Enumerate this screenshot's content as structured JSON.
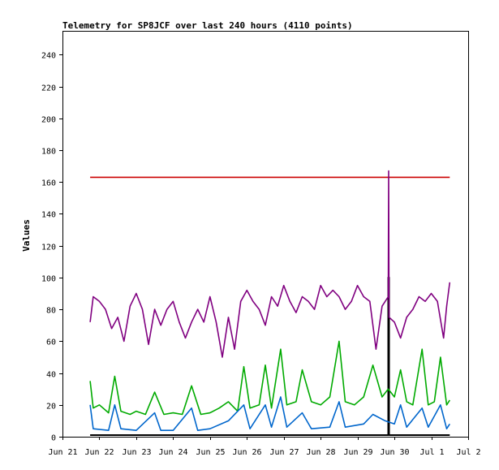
{
  "chart_data": {
    "type": "line",
    "title": "Telemetry for SP8JCF over last 240 hours (4110 points)",
    "xlabel": "",
    "ylabel": "Values",
    "xlim": [
      "2024-06-21T00:00",
      "2024-07-02T00:00"
    ],
    "ylim": [
      0,
      255
    ],
    "x_ticks": [
      {
        "x": "2024-06-21T00:00",
        "label": "Jun 21"
      },
      {
        "x": "2024-06-22T00:00",
        "label": "Jun 22"
      },
      {
        "x": "2024-06-23T00:00",
        "label": "Jun 23"
      },
      {
        "x": "2024-06-24T00:00",
        "label": "Jun 24"
      },
      {
        "x": "2024-06-25T00:00",
        "label": "Jun 25"
      },
      {
        "x": "2024-06-26T00:00",
        "label": "Jun 26"
      },
      {
        "x": "2024-06-27T00:00",
        "label": "Jun 27"
      },
      {
        "x": "2024-06-28T00:00",
        "label": "Jun 28"
      },
      {
        "x": "2024-06-29T00:00",
        "label": "Jun 29"
      },
      {
        "x": "2024-06-30T00:00",
        "label": "Jun 30"
      },
      {
        "x": "2024-07-01T00:00",
        "label": "Jul 1"
      },
      {
        "x": "2024-07-02T00:00",
        "label": "Jul 2"
      }
    ],
    "y_ticks": [
      0,
      20,
      40,
      60,
      80,
      100,
      120,
      140,
      160,
      180,
      200,
      220,
      240
    ],
    "grid": false,
    "legend": "none",
    "series": [
      {
        "color": "#cc0000",
        "points": [
          [
            "2024-06-21T18:00",
            163
          ],
          [
            "2024-07-01T12:00",
            163
          ]
        ]
      },
      {
        "color": "#000000",
        "points": [
          [
            "2024-06-21T18:00",
            1
          ],
          [
            "2024-06-29T20:00",
            1
          ],
          [
            "2024-06-29T20:00",
            100
          ],
          [
            "2024-06-29T20:30",
            100
          ],
          [
            "2024-06-29T20:30",
            1
          ],
          [
            "2024-07-01T12:00",
            1
          ]
        ]
      },
      {
        "color": "#800080",
        "points": [
          [
            "2024-06-21T18:00",
            72
          ],
          [
            "2024-06-21T20:00",
            88
          ],
          [
            "2024-06-22T00:00",
            85
          ],
          [
            "2024-06-22T04:00",
            80
          ],
          [
            "2024-06-22T08:00",
            68
          ],
          [
            "2024-06-22T12:00",
            75
          ],
          [
            "2024-06-22T16:00",
            60
          ],
          [
            "2024-06-22T20:00",
            82
          ],
          [
            "2024-06-23T00:00",
            90
          ],
          [
            "2024-06-23T04:00",
            80
          ],
          [
            "2024-06-23T08:00",
            58
          ],
          [
            "2024-06-23T12:00",
            80
          ],
          [
            "2024-06-23T16:00",
            70
          ],
          [
            "2024-06-23T20:00",
            80
          ],
          [
            "2024-06-24T00:00",
            85
          ],
          [
            "2024-06-24T04:00",
            72
          ],
          [
            "2024-06-24T08:00",
            62
          ],
          [
            "2024-06-24T12:00",
            72
          ],
          [
            "2024-06-24T16:00",
            80
          ],
          [
            "2024-06-24T20:00",
            72
          ],
          [
            "2024-06-25T00:00",
            88
          ],
          [
            "2024-06-25T04:00",
            72
          ],
          [
            "2024-06-25T08:00",
            50
          ],
          [
            "2024-06-25T12:00",
            75
          ],
          [
            "2024-06-25T16:00",
            55
          ],
          [
            "2024-06-25T20:00",
            85
          ],
          [
            "2024-06-26T00:00",
            92
          ],
          [
            "2024-06-26T04:00",
            85
          ],
          [
            "2024-06-26T08:00",
            80
          ],
          [
            "2024-06-26T12:00",
            70
          ],
          [
            "2024-06-26T16:00",
            88
          ],
          [
            "2024-06-26T20:00",
            82
          ],
          [
            "2024-06-27T00:00",
            95
          ],
          [
            "2024-06-27T04:00",
            85
          ],
          [
            "2024-06-27T08:00",
            78
          ],
          [
            "2024-06-27T12:00",
            88
          ],
          [
            "2024-06-27T16:00",
            85
          ],
          [
            "2024-06-27T20:00",
            80
          ],
          [
            "2024-06-28T00:00",
            95
          ],
          [
            "2024-06-28T04:00",
            88
          ],
          [
            "2024-06-28T08:00",
            92
          ],
          [
            "2024-06-28T12:00",
            88
          ],
          [
            "2024-06-28T16:00",
            80
          ],
          [
            "2024-06-28T20:00",
            85
          ],
          [
            "2024-06-29T00:00",
            95
          ],
          [
            "2024-06-29T04:00",
            88
          ],
          [
            "2024-06-29T08:00",
            85
          ],
          [
            "2024-06-29T12:00",
            55
          ],
          [
            "2024-06-29T16:00",
            82
          ],
          [
            "2024-06-29T20:00",
            88
          ],
          [
            "2024-06-29T20:15",
            167
          ],
          [
            "2024-06-29T20:30",
            75
          ],
          [
            "2024-06-30T00:00",
            72
          ],
          [
            "2024-06-30T04:00",
            62
          ],
          [
            "2024-06-30T08:00",
            75
          ],
          [
            "2024-06-30T12:00",
            80
          ],
          [
            "2024-06-30T16:00",
            88
          ],
          [
            "2024-06-30T20:00",
            85
          ],
          [
            "2024-07-01T00:00",
            90
          ],
          [
            "2024-07-01T04:00",
            85
          ],
          [
            "2024-07-01T08:00",
            62
          ],
          [
            "2024-07-01T10:00",
            82
          ],
          [
            "2024-07-01T12:00",
            97
          ]
        ]
      },
      {
        "color": "#00aa00",
        "points": [
          [
            "2024-06-21T18:00",
            35
          ],
          [
            "2024-06-21T20:00",
            18
          ],
          [
            "2024-06-22T00:00",
            20
          ],
          [
            "2024-06-22T06:00",
            15
          ],
          [
            "2024-06-22T10:00",
            38
          ],
          [
            "2024-06-22T14:00",
            16
          ],
          [
            "2024-06-22T20:00",
            14
          ],
          [
            "2024-06-23T00:00",
            16
          ],
          [
            "2024-06-23T06:00",
            14
          ],
          [
            "2024-06-23T12:00",
            28
          ],
          [
            "2024-06-23T18:00",
            14
          ],
          [
            "2024-06-24T00:00",
            15
          ],
          [
            "2024-06-24T06:00",
            14
          ],
          [
            "2024-06-24T12:00",
            32
          ],
          [
            "2024-06-24T18:00",
            14
          ],
          [
            "2024-06-25T00:00",
            15
          ],
          [
            "2024-06-25T06:00",
            18
          ],
          [
            "2024-06-25T12:00",
            22
          ],
          [
            "2024-06-25T18:00",
            16
          ],
          [
            "2024-06-25T22:00",
            44
          ],
          [
            "2024-06-26T02:00",
            18
          ],
          [
            "2024-06-26T08:00",
            20
          ],
          [
            "2024-06-26T12:00",
            45
          ],
          [
            "2024-06-26T16:00",
            18
          ],
          [
            "2024-06-26T22:00",
            55
          ],
          [
            "2024-06-27T02:00",
            20
          ],
          [
            "2024-06-27T08:00",
            22
          ],
          [
            "2024-06-27T12:00",
            42
          ],
          [
            "2024-06-27T18:00",
            22
          ],
          [
            "2024-06-28T00:00",
            20
          ],
          [
            "2024-06-28T06:00",
            25
          ],
          [
            "2024-06-28T12:00",
            60
          ],
          [
            "2024-06-28T16:00",
            22
          ],
          [
            "2024-06-28T22:00",
            20
          ],
          [
            "2024-06-29T04:00",
            25
          ],
          [
            "2024-06-29T10:00",
            45
          ],
          [
            "2024-06-29T16:00",
            25
          ],
          [
            "2024-06-29T20:00",
            30
          ],
          [
            "2024-06-30T00:00",
            25
          ],
          [
            "2024-06-30T04:00",
            42
          ],
          [
            "2024-06-30T08:00",
            22
          ],
          [
            "2024-06-30T12:00",
            20
          ],
          [
            "2024-06-30T18:00",
            55
          ],
          [
            "2024-06-30T22:00",
            20
          ],
          [
            "2024-07-01T02:00",
            22
          ],
          [
            "2024-07-01T06:00",
            50
          ],
          [
            "2024-07-01T10:00",
            20
          ],
          [
            "2024-07-01T12:00",
            23
          ]
        ]
      },
      {
        "color": "#0066cc",
        "points": [
          [
            "2024-06-21T18:00",
            20
          ],
          [
            "2024-06-21T20:00",
            5
          ],
          [
            "2024-06-22T06:00",
            4
          ],
          [
            "2024-06-22T10:00",
            20
          ],
          [
            "2024-06-22T14:00",
            5
          ],
          [
            "2024-06-23T00:00",
            4
          ],
          [
            "2024-06-23T12:00",
            15
          ],
          [
            "2024-06-23T16:00",
            4
          ],
          [
            "2024-06-24T00:00",
            4
          ],
          [
            "2024-06-24T12:00",
            18
          ],
          [
            "2024-06-24T16:00",
            4
          ],
          [
            "2024-06-25T00:00",
            5
          ],
          [
            "2024-06-25T12:00",
            10
          ],
          [
            "2024-06-25T22:00",
            20
          ],
          [
            "2024-06-26T02:00",
            5
          ],
          [
            "2024-06-26T12:00",
            20
          ],
          [
            "2024-06-26T16:00",
            6
          ],
          [
            "2024-06-26T22:00",
            25
          ],
          [
            "2024-06-27T02:00",
            6
          ],
          [
            "2024-06-27T12:00",
            15
          ],
          [
            "2024-06-27T18:00",
            5
          ],
          [
            "2024-06-28T06:00",
            6
          ],
          [
            "2024-06-28T12:00",
            22
          ],
          [
            "2024-06-28T16:00",
            6
          ],
          [
            "2024-06-29T04:00",
            8
          ],
          [
            "2024-06-29T10:00",
            14
          ],
          [
            "2024-06-29T18:00",
            10
          ],
          [
            "2024-06-30T00:00",
            8
          ],
          [
            "2024-06-30T04:00",
            20
          ],
          [
            "2024-06-30T08:00",
            6
          ],
          [
            "2024-06-30T18:00",
            18
          ],
          [
            "2024-06-30T22:00",
            6
          ],
          [
            "2024-07-01T06:00",
            20
          ],
          [
            "2024-07-01T10:00",
            5
          ],
          [
            "2024-07-01T12:00",
            8
          ]
        ]
      }
    ]
  }
}
